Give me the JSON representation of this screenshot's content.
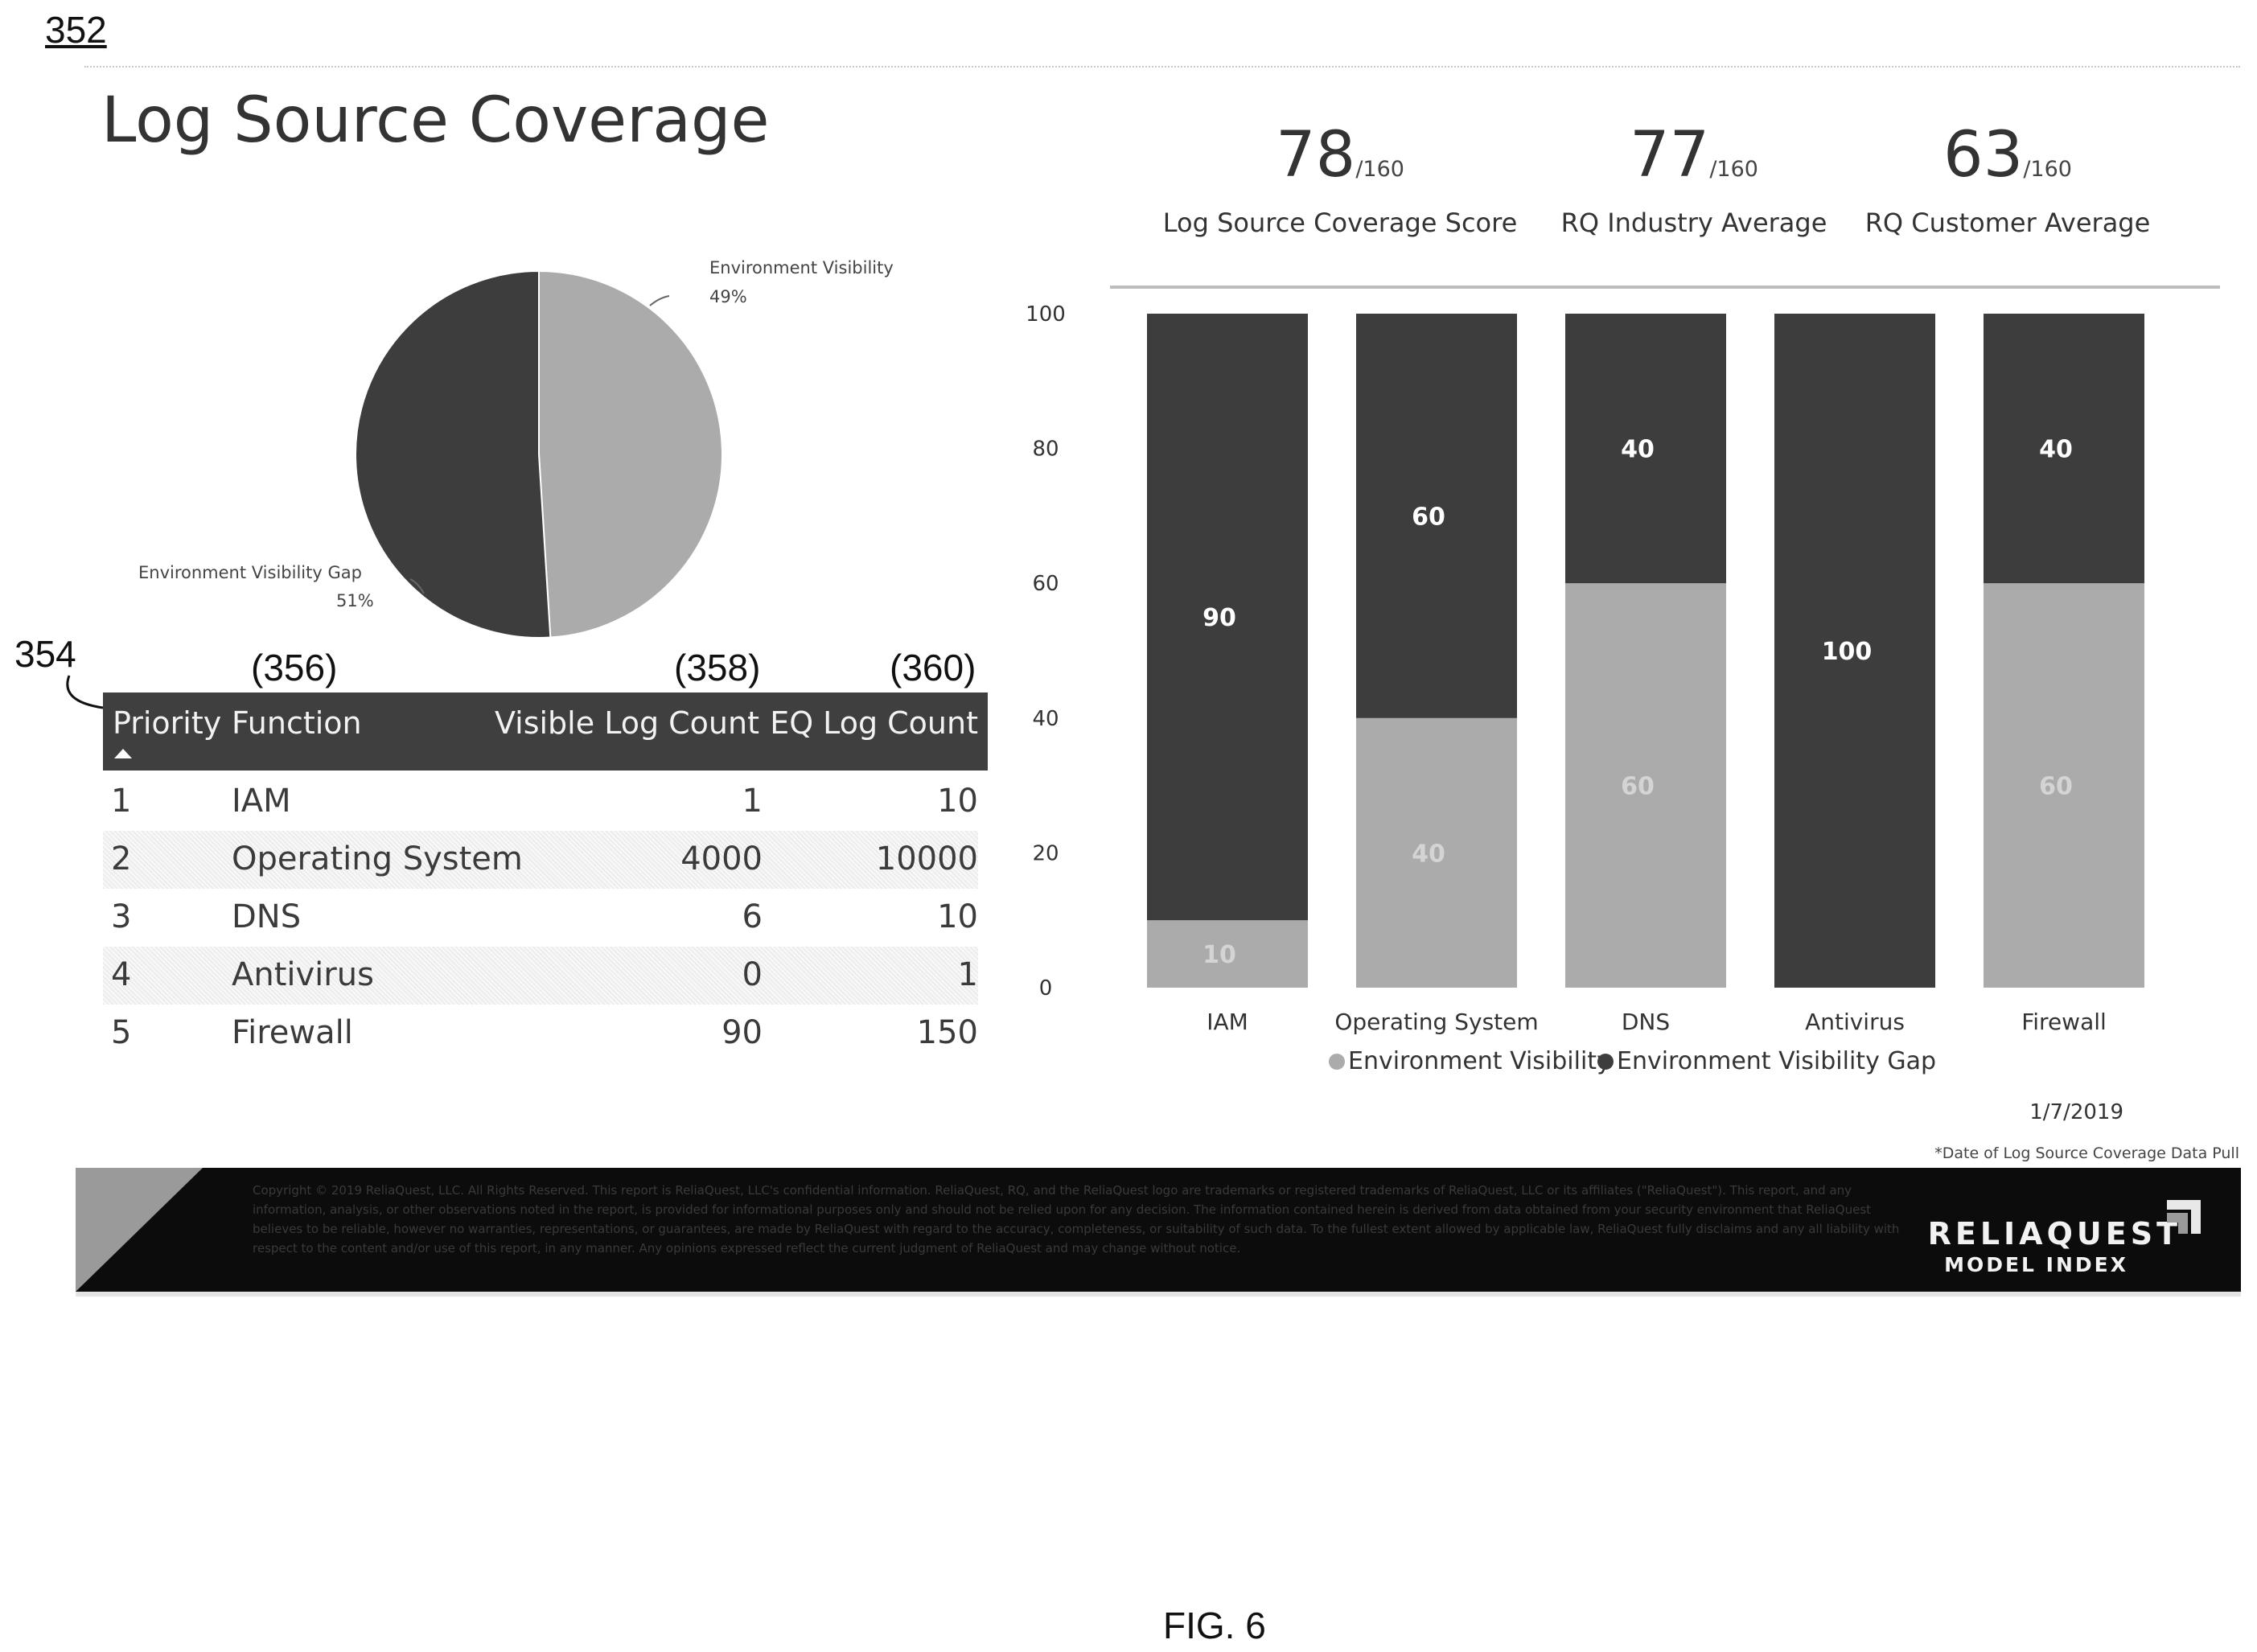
{
  "figure": {
    "ref": "352",
    "caption": "FIG. 6",
    "table_ref": "354",
    "column_refs": [
      "(356)",
      "(358)",
      "(360)"
    ]
  },
  "page": {
    "title": "Log Source Coverage"
  },
  "pie": {
    "slices": [
      {
        "label": "Environment Visibility",
        "pct_label": "49%",
        "value": 49,
        "color": "#ababab"
      },
      {
        "label": "Environment Visibility Gap",
        "pct_label": "51%",
        "value": 51,
        "color": "#3d3d3d"
      }
    ]
  },
  "table": {
    "headers": [
      "Priority",
      "Function",
      "Visible Log Count",
      "EQ Log Count"
    ],
    "rows": [
      [
        "1",
        "IAM",
        "1",
        "10"
      ],
      [
        "2",
        "Operating System",
        "4000",
        "10000"
      ],
      [
        "3",
        "DNS",
        "6",
        "10"
      ],
      [
        "4",
        "Antivirus",
        "0",
        "1"
      ],
      [
        "5",
        "Firewall",
        "90",
        "150"
      ]
    ]
  },
  "kpis": [
    {
      "value": "78",
      "denominator": "/160",
      "label": "Log Source Coverage Score"
    },
    {
      "value": "77",
      "denominator": "/160",
      "label": "RQ Industry Average"
    },
    {
      "value": "63",
      "denominator": "/160",
      "label": "RQ Customer Average"
    }
  ],
  "chart_data": {
    "type": "bar",
    "stacked": true,
    "categories": [
      "IAM",
      "Operating System",
      "DNS",
      "Antivirus",
      "Firewall"
    ],
    "series": [
      {
        "name": "Environment Visibility",
        "values": [
          10,
          40,
          60,
          0,
          60
        ],
        "color": "#ababab",
        "label_color": "#d4d4d4"
      },
      {
        "name": "Environment Visibility Gap",
        "values": [
          90,
          60,
          40,
          100,
          40
        ],
        "color": "#3d3d3d",
        "label_color": "#ffffff"
      }
    ],
    "yticks": [
      "0",
      "20",
      "40",
      "60",
      "80",
      "100"
    ],
    "ylim": [
      0,
      100
    ],
    "legend_position": "bottom"
  },
  "data_date": "1/7/2019",
  "data_date_note": "*Date of Log Source Coverage Data Pull",
  "footer": {
    "legal": "Copyright © 2019 ReliaQuest, LLC. All Rights Reserved. This report is ReliaQuest, LLC's confidential information. ReliaQuest, RQ, and the ReliaQuest logo are trademarks or registered trademarks of ReliaQuest, LLC or its affiliates (\"ReliaQuest\"). This report, and any information, analysis, or other observations noted in the report, is provided for informational purposes only and should not be relied upon for any decision. The information contained herein is derived from data obtained from your security environment that ReliaQuest believes to be reliable, however no warranties, representations, or guarantees, are made by ReliaQuest with regard to the accuracy, completeness, or suitability of such data. To the fullest extent allowed by applicable law, ReliaQuest fully disclaims and any all liability with respect to the content and/or use of this report, in any manner. Any opinions expressed reflect the current judgment of ReliaQuest and may change without notice.",
    "brand_name": "RELIAQUEST",
    "brand_sub": "MODEL INDEX"
  }
}
